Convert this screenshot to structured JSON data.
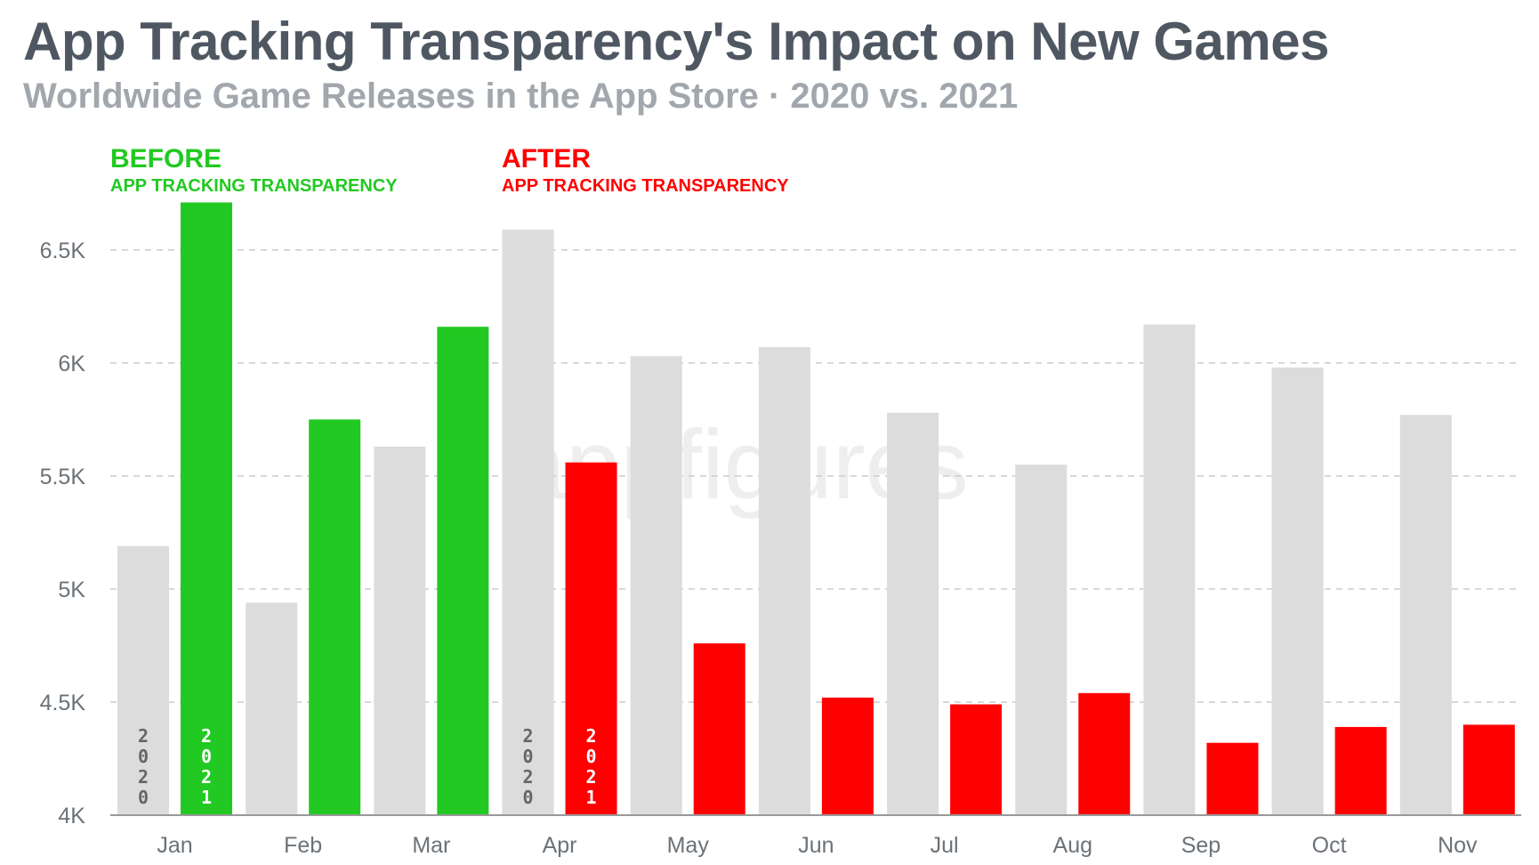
{
  "header": {
    "title": "App Tracking Transparency's Impact on New Games",
    "subtitle": "Worldwide Game Releases in the App Store · 2020 vs. 2021"
  },
  "annotations": {
    "before": {
      "main": "BEFORE",
      "sub": "APP TRACKING TRANSPARENCY",
      "color": "#22c922"
    },
    "after": {
      "main": "AFTER",
      "sub": "APP TRACKING TRANSPARENCY",
      "color": "#ff0000"
    }
  },
  "watermark": "appfigures",
  "bar_labels": {
    "y2020": "2020",
    "y2021": "2021"
  },
  "colors": {
    "grey": "#dcdcdc",
    "green": "#22c922",
    "red": "#ff0000",
    "grid": "#cccccc",
    "axis": "#999999"
  },
  "chart_data": {
    "type": "bar",
    "categories": [
      "Jan",
      "Feb",
      "Mar",
      "Apr",
      "May",
      "Jun",
      "Jul",
      "Aug",
      "Sep",
      "Oct",
      "Nov"
    ],
    "series": [
      {
        "name": "2020",
        "values": [
          5190,
          4940,
          5630,
          6590,
          6030,
          6070,
          5780,
          5550,
          6170,
          5980,
          5770
        ]
      },
      {
        "name": "2021",
        "values": [
          6710,
          5750,
          6160,
          5560,
          4760,
          4520,
          4490,
          4540,
          4320,
          4390,
          4400
        ]
      }
    ],
    "yticks": [
      "4K",
      "4.5K",
      "5K",
      "5.5K",
      "6K",
      "6.5K"
    ],
    "ytick_values": [
      4000,
      4500,
      5000,
      5500,
      6000,
      6500
    ],
    "ylim": [
      4000,
      6700
    ],
    "grid": true,
    "before_months": [
      "Jan",
      "Feb",
      "Mar"
    ],
    "after_months": [
      "Apr",
      "May",
      "Jun",
      "Jul",
      "Aug",
      "Sep",
      "Oct",
      "Nov"
    ]
  }
}
